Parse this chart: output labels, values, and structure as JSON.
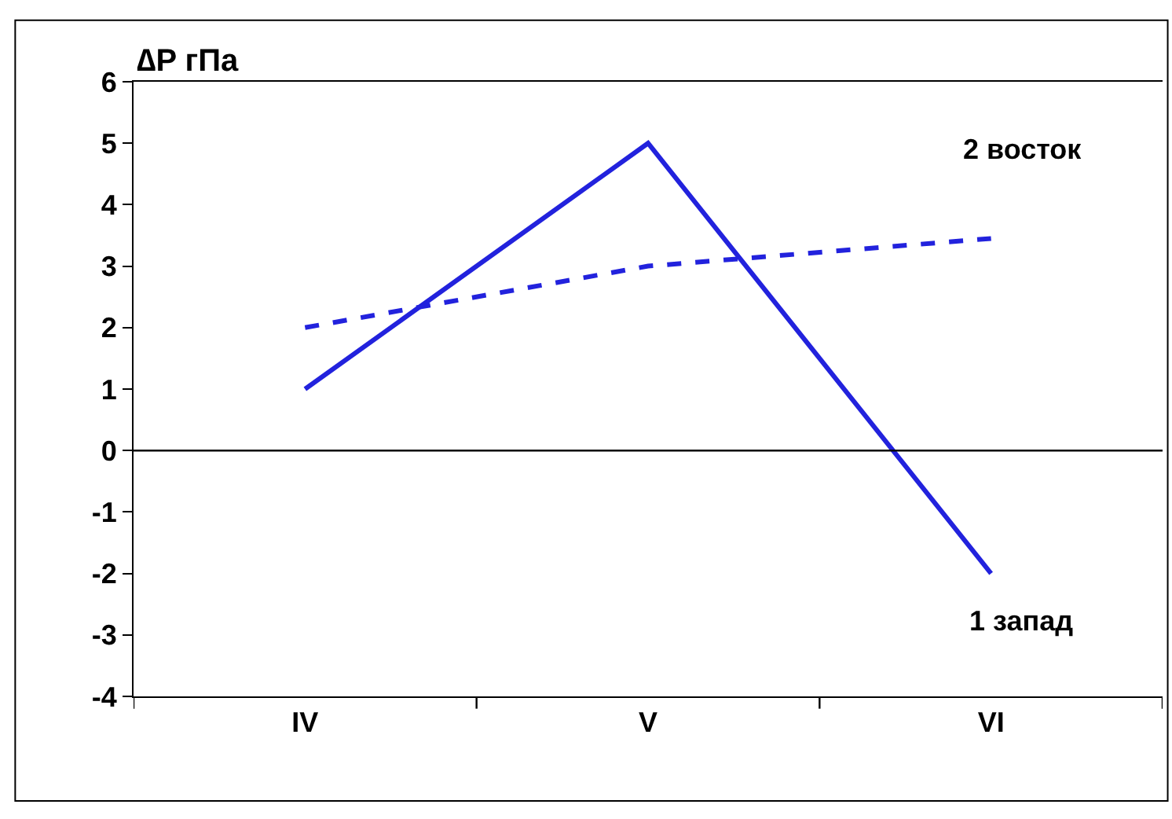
{
  "chart_data": {
    "type": "line",
    "ylabel": "∆P гПа",
    "categories": [
      "IV",
      "V",
      "VI"
    ],
    "series": [
      {
        "name": "1 запад",
        "color": "#2222dd",
        "values": [
          1,
          5,
          -2
        ],
        "line_style": "solid"
      },
      {
        "name": "2 восток",
        "color": "#2222dd",
        "values": [
          2,
          3,
          3.45
        ],
        "line_style": "dashed"
      }
    ],
    "ylim": [
      -4,
      6
    ],
    "yticks": [
      -4,
      -3,
      -2,
      -1,
      0,
      1,
      2,
      3,
      4,
      5,
      6
    ],
    "ref_lines": [
      {
        "axis": "y",
        "value": 0
      }
    ],
    "legend": false,
    "marker": "none"
  }
}
